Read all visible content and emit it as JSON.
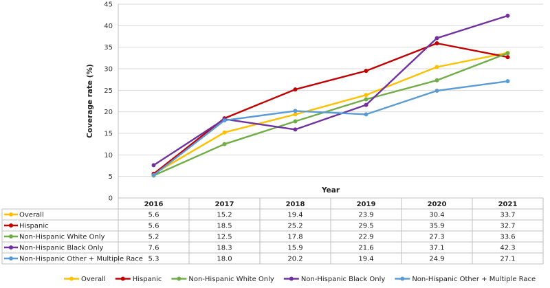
{
  "chart_data": {
    "type": "line",
    "ylabel": "Coverage rate (%)",
    "xlabel": "Year",
    "ylim": [
      0,
      45
    ],
    "yticks": [
      0,
      5,
      10,
      15,
      20,
      25,
      30,
      35,
      40,
      45
    ],
    "categories": [
      "2016",
      "2017",
      "2018",
      "2019",
      "2020",
      "2021"
    ],
    "grid": "y-major",
    "legend_position": "bottom",
    "series": [
      {
        "name": "Overall",
        "color": "#FFC000",
        "values": [
          5.6,
          15.2,
          19.4,
          23.9,
          30.4,
          33.7
        ],
        "labels": [
          "5.6",
          "15.2",
          "19.4",
          "23.9",
          "30.4",
          "33.7"
        ]
      },
      {
        "name": "Hispanic",
        "color": "#C00000",
        "values": [
          5.6,
          18.5,
          25.2,
          29.5,
          35.9,
          32.7
        ],
        "labels": [
          "5.6",
          "18.5",
          "25.2",
          "29.5",
          "35.9",
          "32.7"
        ]
      },
      {
        "name": "Non-Hispanic White Only",
        "color": "#70AD47",
        "values": [
          5.2,
          12.5,
          17.8,
          22.9,
          27.3,
          33.6
        ],
        "labels": [
          "5.2",
          "12.5",
          "17.8",
          "22.9",
          "27.3",
          "33.6"
        ]
      },
      {
        "name": "Non-Hispanic Black Only",
        "color": "#7030A0",
        "values": [
          7.6,
          18.3,
          15.9,
          21.6,
          37.1,
          42.3
        ],
        "labels": [
          "7.6",
          "18.3",
          "15.9",
          "21.6",
          "37.1",
          "42.3"
        ]
      },
      {
        "name": "Non-Hispanic Other + Multiple Race",
        "color": "#5B9BD5",
        "values": [
          5.3,
          18.0,
          20.2,
          19.4,
          24.9,
          27.1
        ],
        "labels": [
          "5.3",
          "18.0",
          "20.2",
          "19.4",
          "24.9",
          "27.1"
        ]
      }
    ]
  }
}
